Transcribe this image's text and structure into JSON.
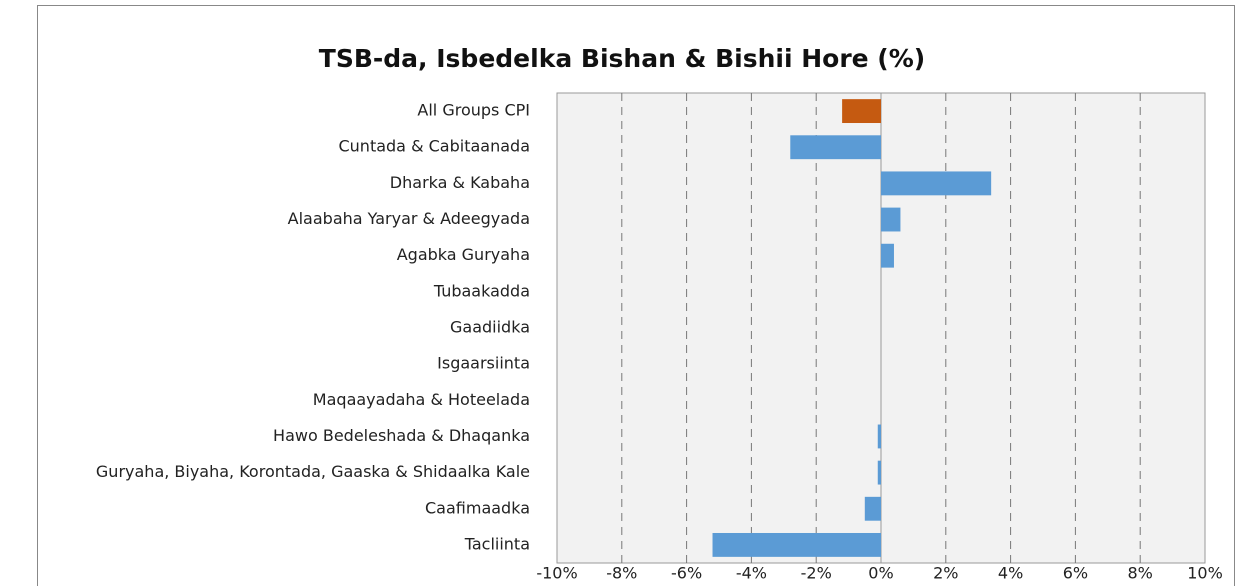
{
  "chart_data": {
    "type": "barh",
    "title": "TSB-da, Isbedelka Bishan & Bishii Hore (%)",
    "categories": [
      "All Groups CPI",
      "Cuntada & Cabitaanada",
      "Dharka & Kabaha",
      "Alaabaha Yaryar & Adeegyada",
      "Agabka Guryaha",
      "Tubaakadda",
      "Gaadiidka",
      "Isgaarsiinta",
      "Maqaayadaha & Hoteelada",
      "Hawo Bedeleshada & Dhaqanka",
      "Guryaha, Biyaha, Korontada, Gaaska & Shidaalka Kale",
      "Caafimaadka",
      "Tacliinta"
    ],
    "values": [
      -1.2,
      -2.8,
      3.4,
      0.6,
      0.4,
      0,
      0,
      0,
      0,
      -0.1,
      -0.1,
      -0.5,
      -5.2
    ],
    "colors": [
      "#c55a11",
      "#5b9bd5",
      "#5b9bd5",
      "#5b9bd5",
      "#5b9bd5",
      "#5b9bd5",
      "#5b9bd5",
      "#5b9bd5",
      "#5b9bd5",
      "#5b9bd5",
      "#5b9bd5",
      "#5b9bd5",
      "#5b9bd5"
    ],
    "xlim": [
      -10,
      10
    ],
    "xticks": [
      {
        "value": -10,
        "label": "-10%"
      },
      {
        "value": -8,
        "label": "-8%"
      },
      {
        "value": -6,
        "label": "-6%"
      },
      {
        "value": -4,
        "label": "-4%"
      },
      {
        "value": -2,
        "label": "-2%"
      },
      {
        "value": 0,
        "label": "0%"
      },
      {
        "value": 2,
        "label": "2%"
      },
      {
        "value": 4,
        "label": "4%"
      },
      {
        "value": 6,
        "label": "6%"
      },
      {
        "value": 8,
        "label": "8%"
      },
      {
        "value": 10,
        "label": "10%"
      }
    ],
    "grid": true
  }
}
